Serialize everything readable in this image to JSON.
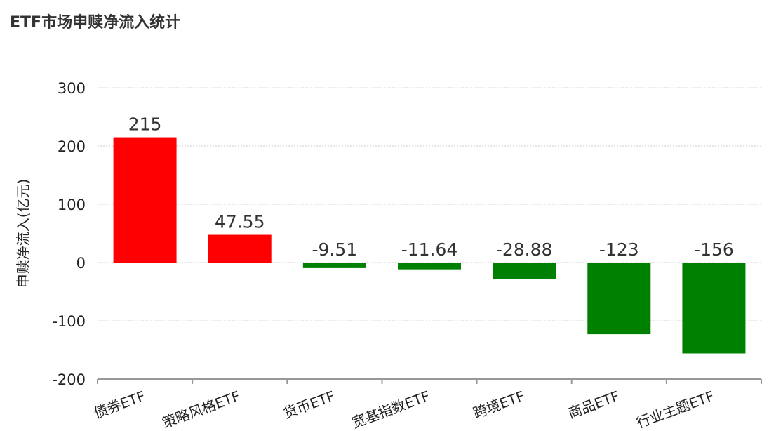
{
  "chart_data": {
    "type": "bar",
    "title": "ETF市场申赎净流入统计",
    "xlabel": "",
    "ylabel": "申赎净流入(亿元)",
    "ylim": [
      -200,
      300
    ],
    "yticks": [
      300,
      200,
      100,
      0,
      -100,
      -200
    ],
    "grid": true,
    "categories": [
      "债券ETF",
      "策略风格ETF",
      "货币ETF",
      "宽基指数ETF",
      "跨境ETF",
      "商品ETF",
      "行业主题ETF"
    ],
    "values": [
      215,
      47.55,
      -9.51,
      -11.64,
      -28.88,
      -123,
      -156
    ],
    "labels": [
      "215",
      "47.55",
      "-9.51",
      "-11.64",
      "-28.88",
      "-123",
      "-156"
    ],
    "colors": {
      "positive": "#ff0000",
      "negative": "#008000"
    }
  }
}
